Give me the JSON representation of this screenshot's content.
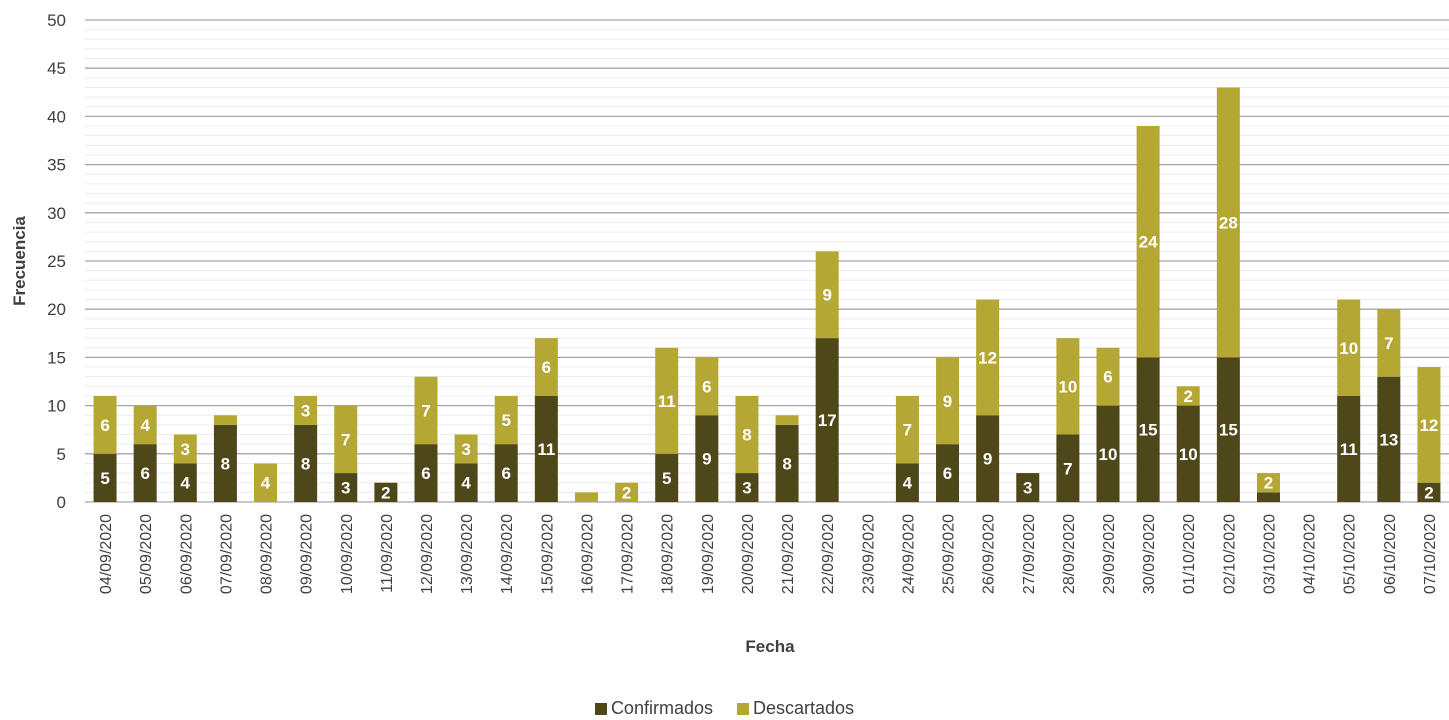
{
  "chart_data": {
    "type": "bar",
    "stacked": true,
    "categories": [
      "04/09/2020",
      "05/09/2020",
      "06/09/2020",
      "07/09/2020",
      "08/09/2020",
      "09/09/2020",
      "10/09/2020",
      "11/09/2020",
      "12/09/2020",
      "13/09/2020",
      "14/09/2020",
      "15/09/2020",
      "16/09/2020",
      "17/09/2020",
      "18/09/2020",
      "19/09/2020",
      "20/09/2020",
      "21/09/2020",
      "22/09/2020",
      "23/09/2020",
      "24/09/2020",
      "25/09/2020",
      "26/09/2020",
      "27/09/2020",
      "28/09/2020",
      "29/09/2020",
      "30/09/2020",
      "01/10/2020",
      "02/10/2020",
      "03/10/2020",
      "04/10/2020",
      "05/10/2020",
      "06/10/2020",
      "07/10/2020"
    ],
    "series": [
      {
        "name": "Confirmados",
        "color": "#4d4719",
        "values": [
          5,
          6,
          4,
          8,
          0,
          8,
          3,
          2,
          6,
          4,
          6,
          11,
          0,
          0,
          5,
          9,
          3,
          8,
          17,
          0,
          4,
          6,
          9,
          3,
          7,
          10,
          15,
          10,
          15,
          1,
          0,
          11,
          13,
          2
        ],
        "labels": [
          "5",
          "6",
          "4",
          "8",
          "",
          "8",
          "3",
          "2",
          "6",
          "4",
          "6",
          "11",
          "",
          "",
          "5",
          "9",
          "3",
          "8",
          "17",
          "",
          "4",
          "6",
          "9",
          "3",
          "7",
          "10",
          "15",
          "10",
          "15",
          "",
          "",
          "11",
          "13",
          "2"
        ]
      },
      {
        "name": "Descartados",
        "color": "#b5a733",
        "values": [
          6,
          4,
          3,
          1,
          4,
          3,
          7,
          0,
          7,
          3,
          5,
          6,
          1,
          2,
          11,
          6,
          8,
          1,
          9,
          0,
          7,
          9,
          12,
          0,
          10,
          6,
          24,
          2,
          28,
          2,
          0,
          10,
          7,
          12
        ],
        "labels": [
          "6",
          "4",
          "3",
          "",
          "4",
          "3",
          "7",
          "",
          "7",
          "3",
          "5",
          "6",
          "",
          "2",
          "11",
          "6",
          "8",
          "",
          "9",
          "",
          "7",
          "9",
          "12",
          "",
          "10",
          "6",
          "24",
          "2",
          "28",
          "2",
          "",
          "10",
          "7",
          "12"
        ]
      }
    ],
    "xlabel": "Fecha",
    "ylabel": "Frecuencia",
    "ylim": [
      0,
      50
    ],
    "yticks": [
      0,
      5,
      10,
      15,
      20,
      25,
      30,
      35,
      40,
      45,
      50
    ],
    "grid": true,
    "legend_position": "bottom"
  }
}
